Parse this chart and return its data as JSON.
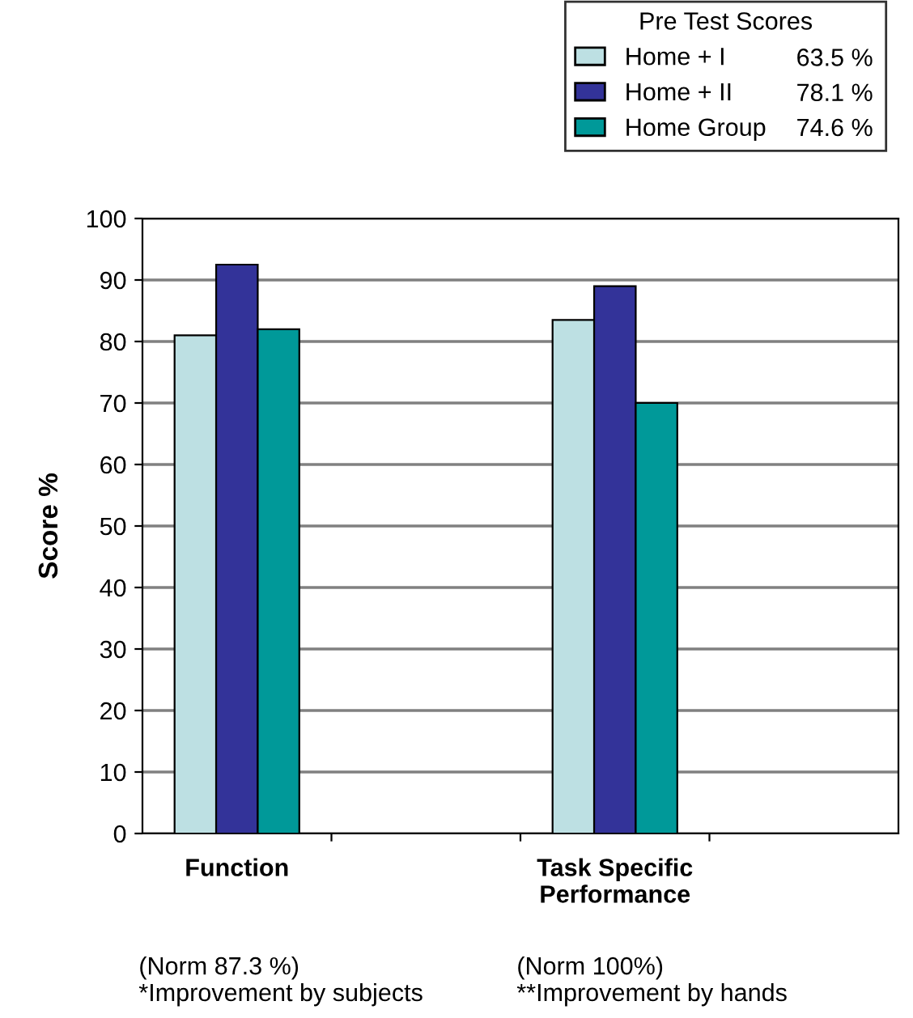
{
  "chart_data": {
    "type": "bar",
    "ylabel": "Score %",
    "legend_title": "Pre Test Scores",
    "categories": [
      "Function",
      null,
      "Task Specific\nPerformance",
      null
    ],
    "series": [
      {
        "name": "Home + I",
        "color": "#bde0e3",
        "values": [
          81,
          null,
          83.5,
          null
        ]
      },
      {
        "name": "Home + II",
        "color": "#333399",
        "values": [
          92.5,
          null,
          89,
          null
        ]
      },
      {
        "name": "Home Group",
        "color": "#009999",
        "values": [
          82,
          null,
          70,
          null
        ]
      }
    ],
    "annotations": [
      "63.5 %",
      "78.1 %",
      "74.6 %",
      "(Norm 87.3 %)\n*Improvement by subjects",
      "(Norm 100%)\n**Improvement by hands"
    ],
    "ylim": [
      0,
      100
    ],
    "yticks": [
      0,
      10,
      20,
      30,
      40,
      50,
      60,
      70,
      80,
      90,
      100
    ],
    "grid": "y",
    "legend": "top right"
  }
}
